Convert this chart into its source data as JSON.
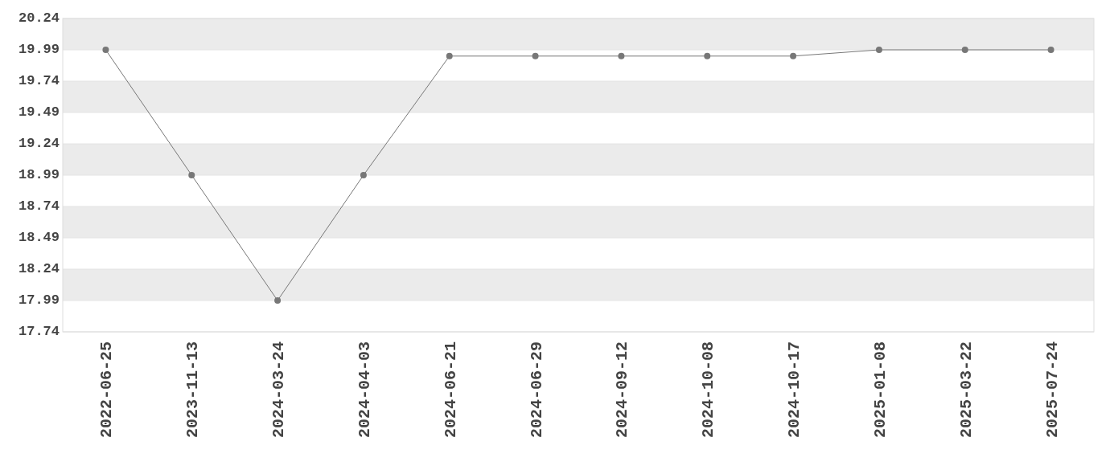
{
  "chart_data": {
    "type": "line",
    "categories": [
      "2022-06-25",
      "2023-11-13",
      "2024-03-24",
      "2024-04-03",
      "2024-06-21",
      "2024-06-29",
      "2024-09-12",
      "2024-10-08",
      "2024-10-17",
      "2025-01-08",
      "2025-03-22",
      "2025-07-24"
    ],
    "series": [
      {
        "color": "#777777",
        "values": [
          19.99,
          18.99,
          17.99,
          18.99,
          19.94,
          19.94,
          19.94,
          19.94,
          19.94,
          19.99,
          19.99,
          19.99
        ]
      }
    ],
    "ylim": [
      17.74,
      20.24
    ],
    "yticks": [
      17.74,
      17.99,
      18.24,
      18.49,
      18.74,
      18.99,
      19.24,
      19.49,
      19.74,
      19.99,
      20.24
    ],
    "grid": "y",
    "marker": "circle",
    "line_style": "solid"
  }
}
